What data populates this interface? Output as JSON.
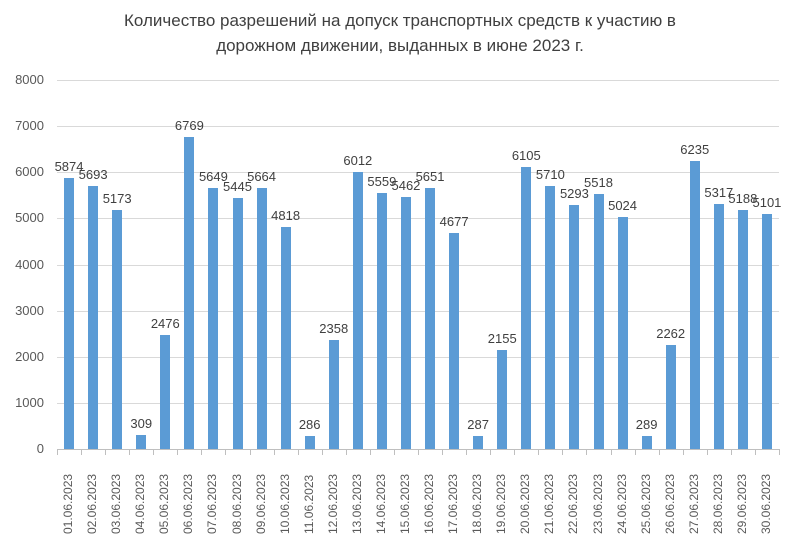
{
  "chart_data": {
    "type": "bar",
    "title": "Количество разрешений на допуск транспортных средств к участию в дорожном движении, выданных в июне 2023 г.",
    "title_lines": [
      "Количество разрешений на допуск транспортных средств к участию в",
      "дорожном движении, выданных в июне 2023 г."
    ],
    "xlabel": "",
    "ylabel": "",
    "ylim": [
      0,
      8000
    ],
    "yticks": [
      "0",
      "1000",
      "2000",
      "3000",
      "4000",
      "5000",
      "6000",
      "7000",
      "8000"
    ],
    "grid": true,
    "legend": null,
    "bar_color": "#5b9bd5",
    "categories": [
      "01.06.2023",
      "02.06.2023",
      "03.06.2023",
      "04.06.2023",
      "05.06.2023",
      "06.06.2023",
      "07.06.2023",
      "08.06.2023",
      "09.06.2023",
      "10.06.2023",
      "11.06.2023",
      "12.06.2023",
      "13.06.2023",
      "14.06.2023",
      "15.06.2023",
      "16.06.2023",
      "17.06.2023",
      "18.06.2023",
      "19.06.2023",
      "20.06.2023",
      "21.06.2023",
      "22.06.2023",
      "23.06.2023",
      "24.06.2023",
      "25.06.2023",
      "26.06.2023",
      "27.06.2023",
      "28.06.2023",
      "29.06.2023",
      "30.06.2023"
    ],
    "values": [
      5874,
      5693,
      5173,
      309,
      2476,
      6769,
      5649,
      5445,
      5664,
      4818,
      286,
      2358,
      6012,
      5559,
      5462,
      5651,
      4677,
      287,
      2155,
      6105,
      5710,
      5293,
      5518,
      5024,
      289,
      2262,
      6235,
      5317,
      5188,
      5101
    ]
  }
}
